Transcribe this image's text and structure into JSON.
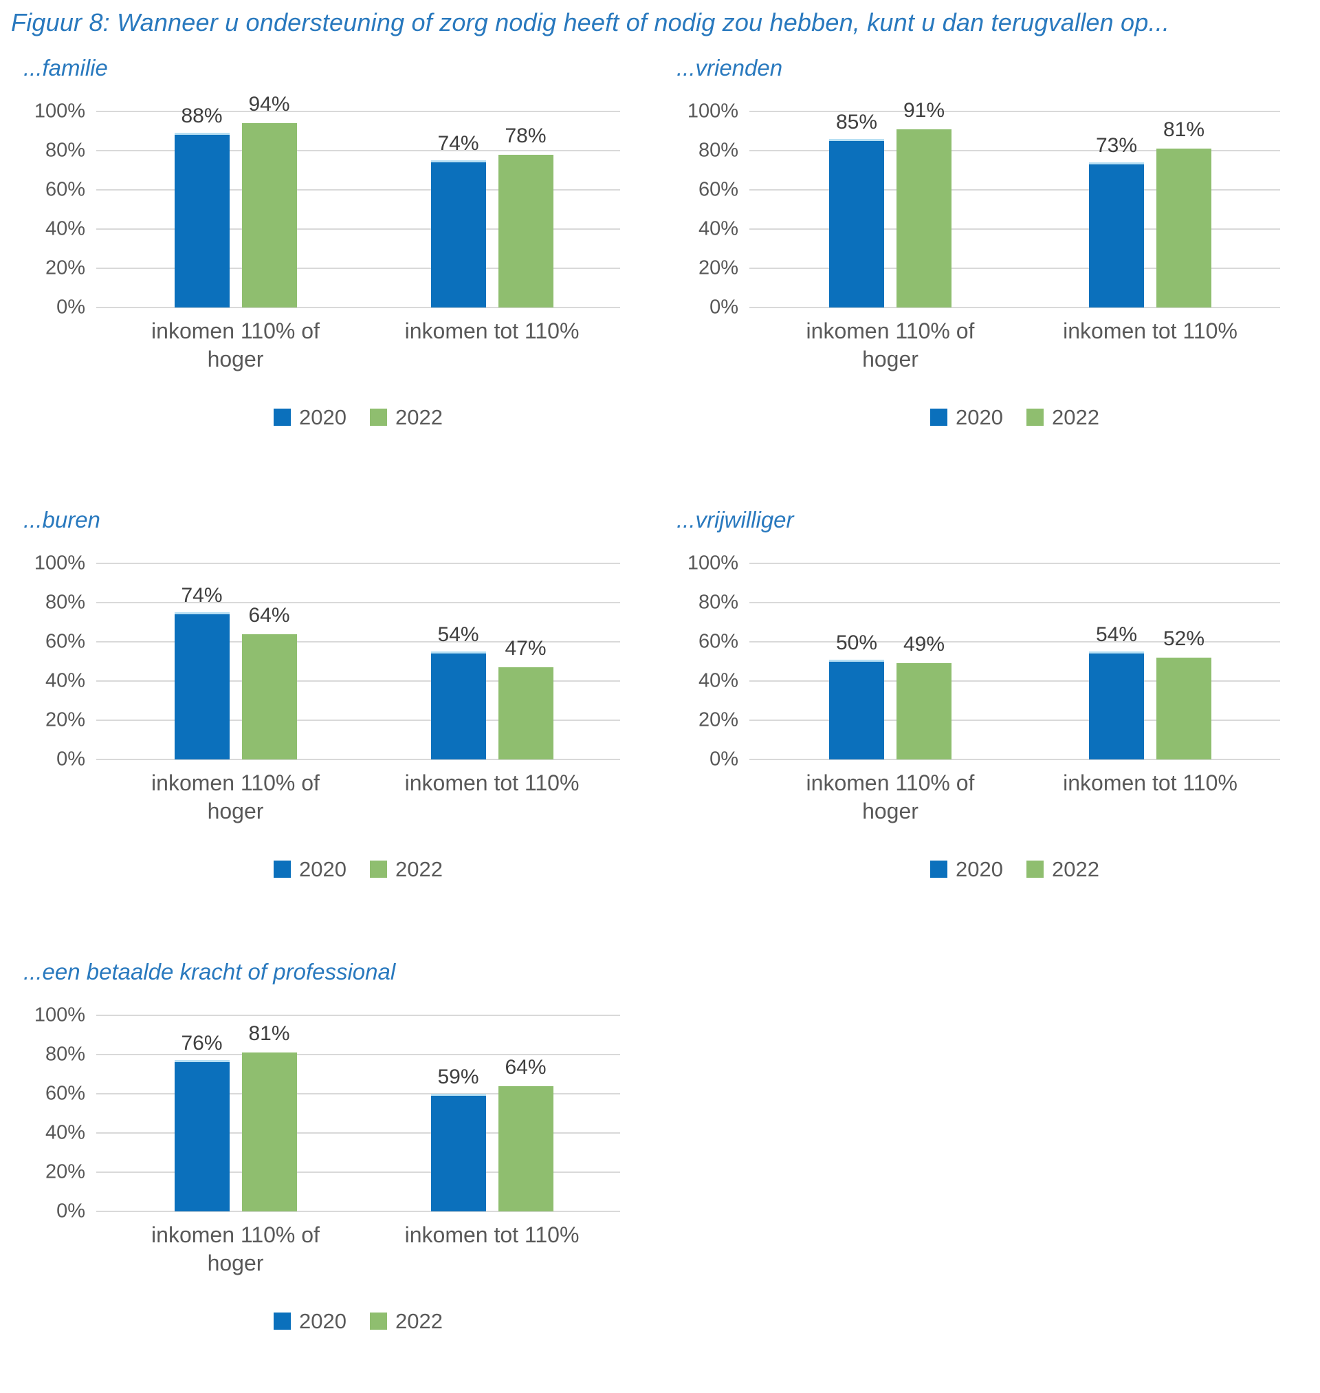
{
  "figure_title": "Figuur 8: Wanneer u ondersteuning of zorg nodig heeft of nodig zou hebben, kunt u dan terugvallen op...",
  "colors": {
    "title_blue": "#2979BE",
    "series_2020": "#0B70BC",
    "series_2022": "#8FBE6F",
    "gridline": "#D9D9D9",
    "axis_text": "#595959",
    "data_label_text": "#3F3F3F"
  },
  "series_styles": [
    {
      "name": "2020",
      "color": "#0B70BC"
    },
    {
      "name": "2022",
      "color": "#8FBE6F"
    }
  ],
  "chart_data": [
    {
      "id": "familie",
      "type": "bar",
      "title": "...familie",
      "categories": [
        "inkomen 110% of hoger",
        "inkomen tot 110%"
      ],
      "category_lines": [
        [
          "inkomen 110% of",
          "hoger"
        ],
        [
          "inkomen tot 110%"
        ]
      ],
      "series": [
        {
          "name": "2020",
          "values": [
            88,
            74
          ]
        },
        {
          "name": "2022",
          "values": [
            94,
            78
          ]
        }
      ],
      "data_labels": [
        [
          "88%",
          "74%"
        ],
        [
          "94%",
          "78%"
        ]
      ],
      "ylim": [
        0,
        100
      ],
      "yticks": [
        "0%",
        "20%",
        "40%",
        "60%",
        "80%",
        "100%"
      ],
      "grid": true,
      "legend": [
        "2020",
        "2022"
      ],
      "legend_position": "bottom"
    },
    {
      "id": "vrienden",
      "type": "bar",
      "title": "...vrienden",
      "categories": [
        "inkomen 110% of hoger",
        "inkomen tot 110%"
      ],
      "category_lines": [
        [
          "inkomen 110% of",
          "hoger"
        ],
        [
          "inkomen tot 110%"
        ]
      ],
      "series": [
        {
          "name": "2020",
          "values": [
            85,
            73
          ]
        },
        {
          "name": "2022",
          "values": [
            91,
            81
          ]
        }
      ],
      "data_labels": [
        [
          "85%",
          "73%"
        ],
        [
          "91%",
          "81%"
        ]
      ],
      "ylim": [
        0,
        100
      ],
      "yticks": [
        "0%",
        "20%",
        "40%",
        "60%",
        "80%",
        "100%"
      ],
      "grid": true,
      "legend": [
        "2020",
        "2022"
      ],
      "legend_position": "bottom"
    },
    {
      "id": "buren",
      "type": "bar",
      "title": "...buren",
      "categories": [
        "inkomen 110% of hoger",
        "inkomen tot 110%"
      ],
      "category_lines": [
        [
          "inkomen 110% of",
          "hoger"
        ],
        [
          "inkomen tot 110%"
        ]
      ],
      "series": [
        {
          "name": "2020",
          "values": [
            74,
            54
          ]
        },
        {
          "name": "2022",
          "values": [
            64,
            47
          ]
        }
      ],
      "data_labels": [
        [
          "74%",
          "54%"
        ],
        [
          "64%",
          "47%"
        ]
      ],
      "ylim": [
        0,
        100
      ],
      "yticks": [
        "0%",
        "20%",
        "40%",
        "60%",
        "80%",
        "100%"
      ],
      "grid": true,
      "legend": [
        "2020",
        "2022"
      ],
      "legend_position": "bottom"
    },
    {
      "id": "vrijwilliger",
      "type": "bar",
      "title": "...vrijwilliger",
      "categories": [
        "inkomen 110% of hoger",
        "inkomen tot 110%"
      ],
      "category_lines": [
        [
          "inkomen 110% of",
          "hoger"
        ],
        [
          "inkomen tot 110%"
        ]
      ],
      "series": [
        {
          "name": "2020",
          "values": [
            50,
            54
          ]
        },
        {
          "name": "2022",
          "values": [
            49,
            52
          ]
        }
      ],
      "data_labels": [
        [
          "50%",
          "54%"
        ],
        [
          "49%",
          "52%"
        ]
      ],
      "ylim": [
        0,
        100
      ],
      "yticks": [
        "0%",
        "20%",
        "40%",
        "60%",
        "80%",
        "100%"
      ],
      "grid": true,
      "legend": [
        "2020",
        "2022"
      ],
      "legend_position": "bottom"
    },
    {
      "id": "een-betaalde-kracht-of-professional",
      "type": "bar",
      "title": "...een betaalde kracht of professional",
      "categories": [
        "inkomen 110% of hoger",
        "inkomen tot 110%"
      ],
      "category_lines": [
        [
          "inkomen 110% of",
          "hoger"
        ],
        [
          "inkomen tot 110%"
        ]
      ],
      "series": [
        {
          "name": "2020",
          "values": [
            76,
            59
          ]
        },
        {
          "name": "2022",
          "values": [
            81,
            64
          ]
        }
      ],
      "data_labels": [
        [
          "76%",
          "59%"
        ],
        [
          "81%",
          "64%"
        ]
      ],
      "ylim": [
        0,
        100
      ],
      "yticks": [
        "0%",
        "20%",
        "40%",
        "60%",
        "80%",
        "100%"
      ],
      "grid": true,
      "legend": [
        "2020",
        "2022"
      ],
      "legend_position": "bottom"
    }
  ]
}
